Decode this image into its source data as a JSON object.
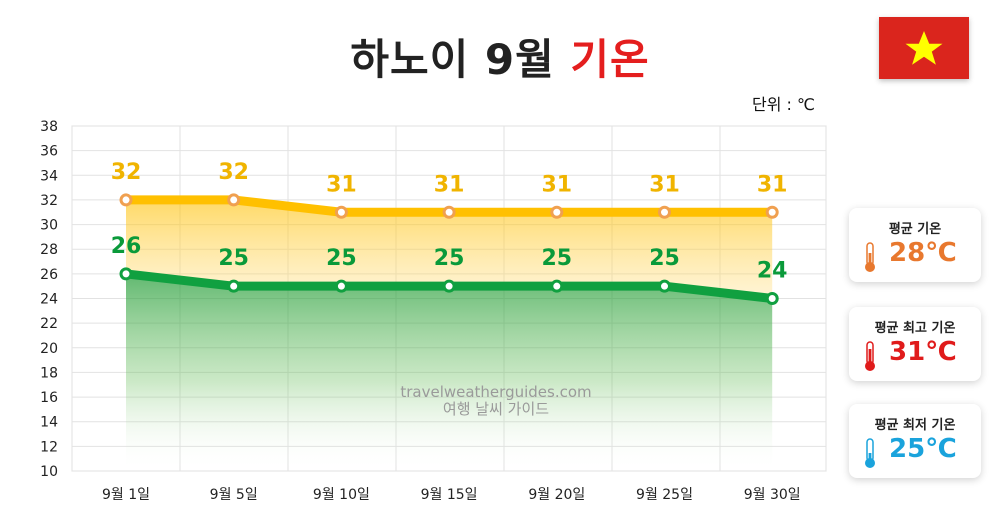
{
  "title": {
    "main": "하노이 9월",
    "accent": "기온"
  },
  "unit_label": "단위 : ℃",
  "watermark": {
    "line1": "travelweatherguides.com",
    "line2": "여행 날씨 가이드"
  },
  "colors": {
    "high_line": "#ffc000",
    "high_label": "#f0b400",
    "high_marker": "#f0a050",
    "low_line": "#10a040",
    "low_label": "#0a9a3a",
    "avg": "#e8782e",
    "max": "#e01b1b",
    "min": "#1aa3dc",
    "accent": "#e41e1e"
  },
  "cards": [
    {
      "label": "평균 기온",
      "value": "28℃",
      "color": "#e8782e",
      "icon": "thermometer-icon"
    },
    {
      "label": "평균 최고 기온",
      "value": "31℃",
      "color": "#e01b1b",
      "icon": "thermometer-icon"
    },
    {
      "label": "평균 최저 기온",
      "value": "25℃",
      "color": "#1aa3dc",
      "icon": "thermometer-icon"
    }
  ],
  "flag": {
    "icon": "vietnam-flag-icon",
    "bg": "#da251d",
    "star": "#ffff00"
  },
  "chart_data": {
    "type": "line",
    "categories": [
      "9월 1일",
      "9월 5일",
      "9월 10일",
      "9월 15일",
      "9월 20일",
      "9월 25일",
      "9월 30일"
    ],
    "series": [
      {
        "values": [
          32,
          32,
          31,
          31,
          31,
          31,
          31
        ]
      },
      {
        "values": [
          26,
          25,
          25,
          25,
          25,
          25,
          24
        ]
      }
    ],
    "yticks": [
      10,
      12,
      14,
      16,
      18,
      20,
      22,
      24,
      26,
      28,
      30,
      32,
      34,
      36,
      38
    ],
    "ylim": [
      10,
      38
    ],
    "grid": true
  }
}
